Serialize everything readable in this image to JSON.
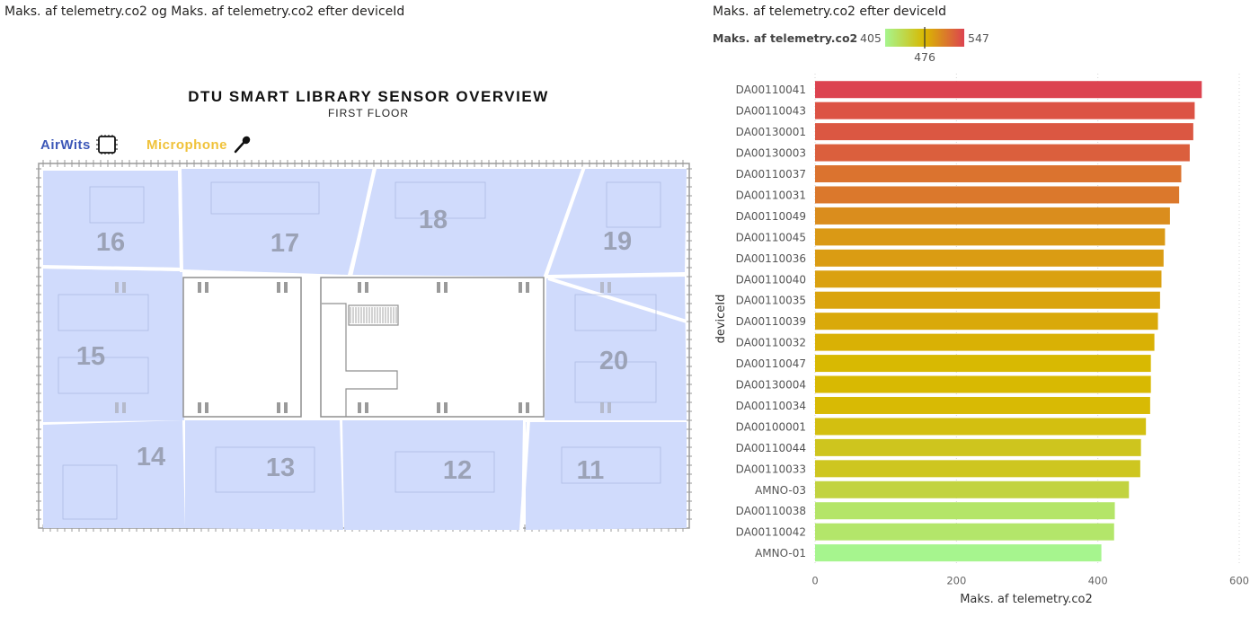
{
  "left_visual": {
    "title": "Maks. af telemetry.co2 og Maks. af telemetry.co2 efter deviceId",
    "map_title": "DTU SMART LIBRARY SENSOR OVERVIEW",
    "map_subtitle": "FIRST FLOOR",
    "legend": {
      "airwits_label": "AirWits",
      "airwits_icon": "sensor-chip-icon",
      "microphone_label": "Microphone",
      "microphone_icon": "microphone-icon"
    },
    "zones": [
      "16",
      "17",
      "18",
      "19",
      "15",
      "20",
      "14",
      "13",
      "12",
      "11"
    ],
    "colors": {
      "zone_fill": "#c9d5fb",
      "airwits": "#3d58b8",
      "microphone": "#f0c23a"
    }
  },
  "chart_data": {
    "type": "bar",
    "orientation": "horizontal",
    "title": "Maks. af telemetry.co2 efter deviceId",
    "xlabel": "Maks. af telemetry.co2",
    "ylabel": "deviceId",
    "xlim": [
      0,
      600
    ],
    "xticks": [
      "0",
      "200",
      "400",
      "600"
    ],
    "grid": "vertical-dotted",
    "color_legend": {
      "label": "Maks. af telemetry.co2",
      "min": "405",
      "max": "547",
      "mid": "476",
      "min_color": "#a6f58e",
      "mid_color": "#d9b800",
      "max_color": "#dc4350",
      "placement": "top-left"
    },
    "categories": [
      "DA00110041",
      "DA00110043",
      "DA00130001",
      "DA00130003",
      "DA00110037",
      "DA00110031",
      "DA00110049",
      "DA00110045",
      "DA00110036",
      "DA00110040",
      "DA00110035",
      "DA00110039",
      "DA00110032",
      "DA00110047",
      "DA00130004",
      "DA00110034",
      "DA00100001",
      "DA00110044",
      "DA00110033",
      "AMNO-03",
      "DA00110038",
      "DA00110042",
      "AMNO-01"
    ],
    "values": [
      547,
      537,
      535,
      530,
      518,
      515,
      502,
      495,
      493,
      490,
      488,
      485,
      480,
      475,
      475,
      474,
      468,
      461,
      460,
      444,
      424,
      423,
      405
    ]
  }
}
